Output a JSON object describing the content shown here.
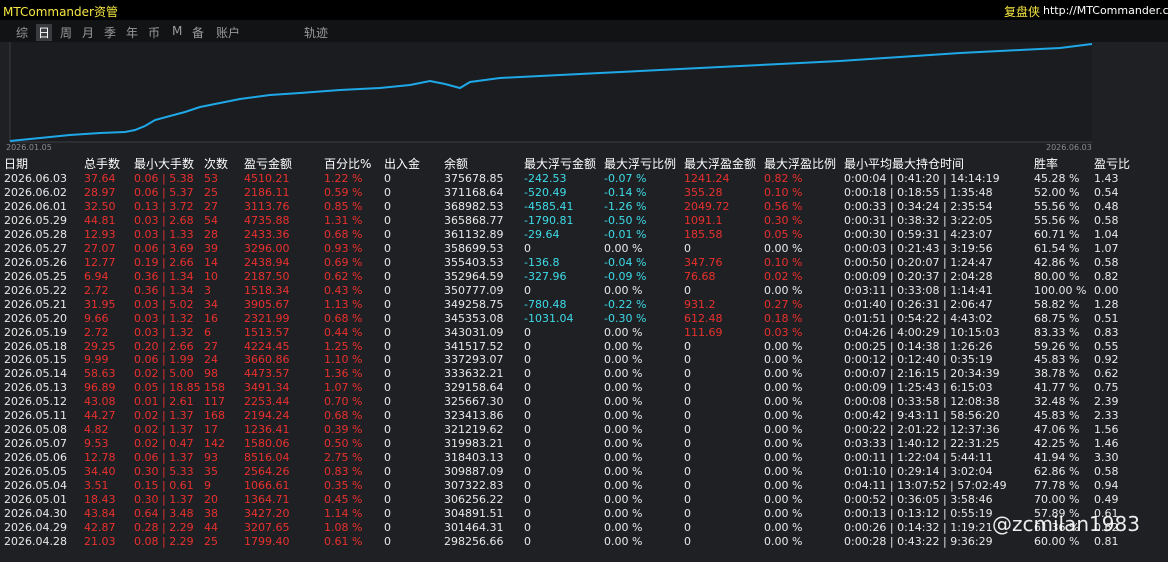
{
  "header": {
    "title": "MTCommander资管",
    "brand": "复盘侠",
    "url": "http://MTCommander.com"
  },
  "tabs": [
    "综",
    "日",
    "周",
    "月",
    "季",
    "年",
    "币",
    "M",
    "备",
    "账户",
    "轨迹"
  ],
  "active_tab": 1,
  "chart": {
    "start_label": "2026.01.05",
    "end_label": "2026.06.03"
  },
  "table": {
    "columns": [
      "日期",
      "总手数",
      "最小大手数",
      "次数",
      "盈亏金额",
      "百分比%",
      "出入金",
      "余额",
      "最大浮亏金额",
      "最大浮亏比例",
      "最大浮盈金额",
      "最大浮盈比例",
      "最小平均最大持仓时间",
      "胜率",
      "盈亏比"
    ],
    "rows": [
      [
        "2026.06.03",
        "37.64",
        "0.06 | 5.38",
        "53",
        "4510.21",
        "1.22 %",
        "0",
        "375678.85",
        "-242.53",
        "-0.07 %",
        "1241.24",
        "0.82 %",
        "0:00:04 | 0:41:20 | 14:14:19",
        "45.28 %",
        "1.43"
      ],
      [
        "2026.06.02",
        "28.97",
        "0.06 | 5.37",
        "25",
        "2186.11",
        "0.59 %",
        "0",
        "371168.64",
        "-520.49",
        "-0.14 %",
        "355.28",
        "0.10 %",
        "0:00:18 | 0:18:55 | 1:35:48",
        "52.00 %",
        "0.54"
      ],
      [
        "2026.06.01",
        "32.50",
        "0.13 | 3.72",
        "27",
        "3113.76",
        "0.85 %",
        "0",
        "368982.53",
        "-4585.41",
        "-1.26 %",
        "2049.72",
        "0.56 %",
        "0:00:33 | 0:34:24 | 2:35:54",
        "55.56 %",
        "0.48"
      ],
      [
        "2026.05.29",
        "44.81",
        "0.03 | 2.68",
        "54",
        "4735.88",
        "1.31 %",
        "0",
        "365868.77",
        "-1790.81",
        "-0.50 %",
        "1091.1",
        "0.30 %",
        "0:00:31 | 0:38:32 | 3:22:05",
        "55.56 %",
        "0.58"
      ],
      [
        "2026.05.28",
        "12.93",
        "0.03 | 1.33",
        "28",
        "2433.36",
        "0.68 %",
        "0",
        "361132.89",
        "-29.64",
        "-0.01 %",
        "185.58",
        "0.05 %",
        "0:00:30 | 0:59:31 | 4:23:07",
        "60.71 %",
        "1.04"
      ],
      [
        "2026.05.27",
        "27.07",
        "0.06 | 3.69",
        "39",
        "3296.00",
        "0.93 %",
        "0",
        "358699.53",
        "0",
        "0.00 %",
        "0",
        "0.00 %",
        "0:00:03 | 0:21:43 | 3:19:56",
        "61.54 %",
        "1.07"
      ],
      [
        "2026.05.26",
        "12.77",
        "0.19 | 2.66",
        "14",
        "2438.94",
        "0.69 %",
        "0",
        "355403.53",
        "-136.8",
        "-0.04 %",
        "347.76",
        "0.10 %",
        "0:00:50 | 0:20:07 | 1:24:47",
        "42.86 %",
        "0.58"
      ],
      [
        "2026.05.25",
        "6.94",
        "0.36 | 1.34",
        "10",
        "2187.50",
        "0.62 %",
        "0",
        "352964.59",
        "-327.96",
        "-0.09 %",
        "76.68",
        "0.02 %",
        "0:00:09 | 0:20:37 | 2:04:28",
        "80.00 %",
        "0.82"
      ],
      [
        "2026.05.22",
        "2.72",
        "0.36 | 1.34",
        "3",
        "1518.34",
        "0.43 %",
        "0",
        "350777.09",
        "0",
        "0.00 %",
        "0",
        "0.00 %",
        "0:03:11 | 0:33:08 | 1:14:41",
        "100.00 %",
        "0.00"
      ],
      [
        "2026.05.21",
        "31.95",
        "0.03 | 5.02",
        "34",
        "3905.67",
        "1.13 %",
        "0",
        "349258.75",
        "-780.48",
        "-0.22 %",
        "931.2",
        "0.27 %",
        "0:01:40 | 0:26:31 | 2:06:47",
        "58.82 %",
        "1.28"
      ],
      [
        "2026.05.20",
        "9.66",
        "0.03 | 1.32",
        "16",
        "2321.99",
        "0.68 %",
        "0",
        "345353.08",
        "-1031.04",
        "-0.30 %",
        "612.48",
        "0.18 %",
        "0:01:51 | 0:54:22 | 4:43:02",
        "68.75 %",
        "0.51"
      ],
      [
        "2026.05.19",
        "2.72",
        "0.03 | 1.32",
        "6",
        "1513.57",
        "0.44 %",
        "0",
        "343031.09",
        "0",
        "0.00 %",
        "111.69",
        "0.03 %",
        "0:04:26 | 4:00:29 | 10:15:03",
        "83.33 %",
        "0.83"
      ],
      [
        "2026.05.18",
        "29.25",
        "0.20 | 2.66",
        "27",
        "4224.45",
        "1.25 %",
        "0",
        "341517.52",
        "0",
        "0.00 %",
        "0",
        "0.00 %",
        "0:00:25 | 0:14:38 | 1:26:26",
        "59.26 %",
        "0.55"
      ],
      [
        "2026.05.15",
        "9.99",
        "0.06 | 1.99",
        "24",
        "3660.86",
        "1.10 %",
        "0",
        "337293.07",
        "0",
        "0.00 %",
        "0",
        "0.00 %",
        "0:00:12 | 0:12:40 | 0:35:19",
        "45.83 %",
        "0.92"
      ],
      [
        "2026.05.14",
        "58.63",
        "0.02 | 5.00",
        "98",
        "4473.57",
        "1.36 %",
        "0",
        "333632.21",
        "0",
        "0.00 %",
        "0",
        "0.00 %",
        "0:00:07 | 2:16:15 | 20:34:39",
        "38.78 %",
        "0.62"
      ],
      [
        "2026.05.13",
        "96.89",
        "0.05 | 18.85",
        "158",
        "3491.34",
        "1.07 %",
        "0",
        "329158.64",
        "0",
        "0.00 %",
        "0",
        "0.00 %",
        "0:00:09 | 1:25:43 | 6:15:03",
        "41.77 %",
        "0.75"
      ],
      [
        "2026.05.12",
        "43.08",
        "0.01 | 2.61",
        "117",
        "2253.44",
        "0.70 %",
        "0",
        "325667.30",
        "0",
        "0.00 %",
        "0",
        "0.00 %",
        "0:00:08 | 0:33:58 | 12:08:38",
        "32.48 %",
        "2.39"
      ],
      [
        "2026.05.11",
        "44.27",
        "0.02 | 1.37",
        "168",
        "2194.24",
        "0.68 %",
        "0",
        "323413.86",
        "0",
        "0.00 %",
        "0",
        "0.00 %",
        "0:00:42 | 9:43:11 | 58:56:20",
        "45.83 %",
        "2.33"
      ],
      [
        "2026.05.08",
        "4.82",
        "0.02 | 1.37",
        "17",
        "1236.41",
        "0.39 %",
        "0",
        "321219.62",
        "0",
        "0.00 %",
        "0",
        "0.00 %",
        "0:00:22 | 2:01:22 | 12:37:36",
        "47.06 %",
        "1.56"
      ],
      [
        "2026.05.07",
        "9.53",
        "0.02 | 0.47",
        "142",
        "1580.06",
        "0.50 %",
        "0",
        "319983.21",
        "0",
        "0.00 %",
        "0",
        "0.00 %",
        "0:03:33 | 1:40:12 | 22:31:25",
        "42.25 %",
        "1.46"
      ],
      [
        "2026.05.06",
        "12.78",
        "0.06 | 1.37",
        "93",
        "8516.04",
        "2.75 %",
        "0",
        "318403.13",
        "0",
        "0.00 %",
        "0",
        "0.00 %",
        "0:00:11 | 1:22:04 | 5:44:11",
        "41.94 %",
        "3.30"
      ],
      [
        "2026.05.05",
        "34.40",
        "0.30 | 5.33",
        "35",
        "2564.26",
        "0.83 %",
        "0",
        "309887.09",
        "0",
        "0.00 %",
        "0",
        "0.00 %",
        "0:01:10 | 0:29:14 | 3:02:04",
        "62.86 %",
        "0.58"
      ],
      [
        "2026.05.04",
        "3.51",
        "0.15 | 0.61",
        "9",
        "1066.61",
        "0.35 %",
        "0",
        "307322.83",
        "0",
        "0.00 %",
        "0",
        "0.00 %",
        "0:04:11 | 13:07:52 | 57:02:49",
        "77.78 %",
        "0.94"
      ],
      [
        "2026.05.01",
        "18.43",
        "0.30 | 1.37",
        "20",
        "1364.71",
        "0.45 %",
        "0",
        "306256.22",
        "0",
        "0.00 %",
        "0",
        "0.00 %",
        "0:00:52 | 0:36:05 | 3:58:46",
        "70.00 %",
        "0.49"
      ],
      [
        "2026.04.30",
        "43.84",
        "0.64 | 3.48",
        "38",
        "3427.20",
        "1.14 %",
        "0",
        "304891.51",
        "0",
        "0.00 %",
        "0",
        "0.00 %",
        "0:00:13 | 0:13:12 | 0:55:19",
        "57.89 %",
        "0.61"
      ],
      [
        "2026.04.29",
        "42.87",
        "0.28 | 2.29",
        "44",
        "3207.65",
        "1.08 %",
        "0",
        "301464.31",
        "0",
        "0.00 %",
        "0",
        "0.00 %",
        "0:00:26 | 0:14:32 | 1:19:21",
        "61.36 %",
        "0.62"
      ],
      [
        "2026.04.28",
        "21.03",
        "0.08 | 2.29",
        "25",
        "1799.40",
        "0.61 %",
        "0",
        "298256.66",
        "0",
        "0.00 %",
        "0",
        "0.00 %",
        "0:00:28 | 0:43:22 | 9:36:29",
        "60.00 %",
        "0.81"
      ]
    ]
  },
  "watermark": "@zcmilan1983"
}
